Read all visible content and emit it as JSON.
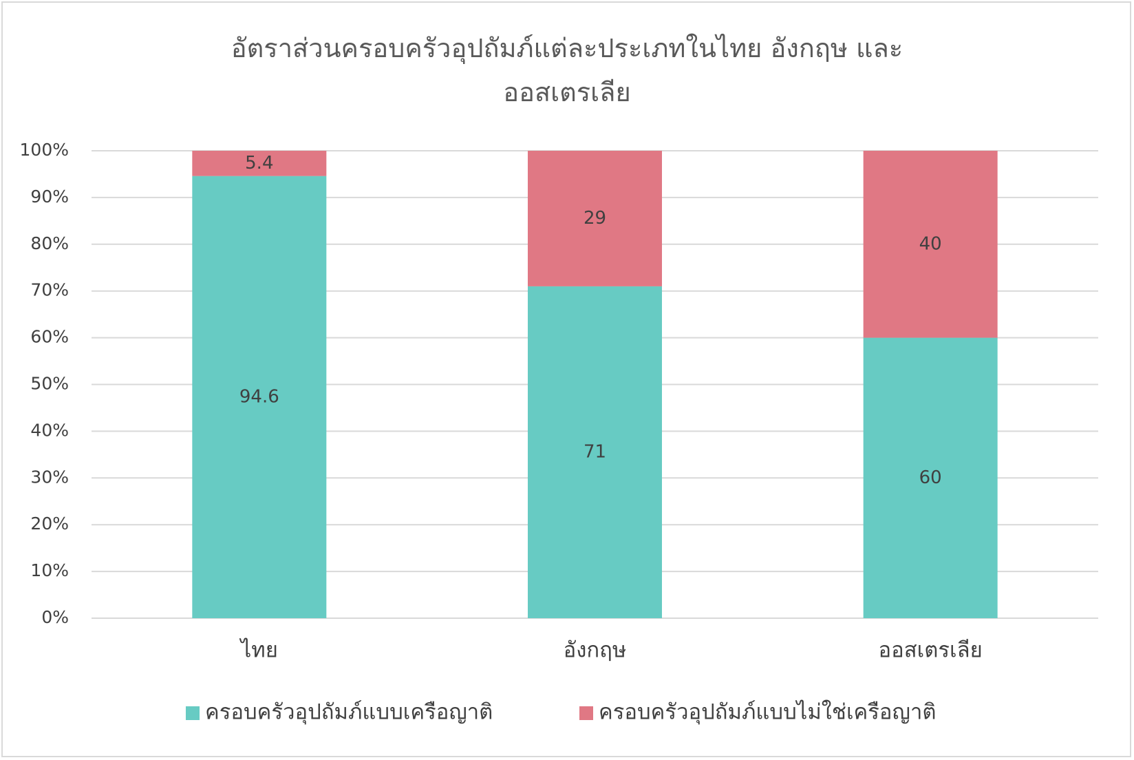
{
  "chart_data": {
    "type": "stacked_bar_100",
    "title": "อัตราส่วนครอบครัวอุปถัมภ์แต่ละประเภทในไทย อังกฤษ และออสเตรเลีย",
    "categories": [
      "ไทย",
      "อังกฤษ",
      "ออสเตรเลีย"
    ],
    "series": [
      {
        "name": "ครอบครัวอุปถัมภ์แบบเครือญาติ",
        "color": "#67cbc3",
        "values": [
          94.6,
          71,
          60
        ]
      },
      {
        "name": "ครอบครัวอุปถัมภ์แบบไม่ใช่เครือญาติ",
        "color": "#e07884",
        "values": [
          5.4,
          29,
          40
        ]
      }
    ],
    "ylim": [
      0,
      100
    ],
    "yticks": [
      {
        "value": 0,
        "label": "0%"
      },
      {
        "value": 10,
        "label": "10%"
      },
      {
        "value": 20,
        "label": "20%"
      },
      {
        "value": 30,
        "label": "30%"
      },
      {
        "value": 40,
        "label": "40%"
      },
      {
        "value": 50,
        "label": "50%"
      },
      {
        "value": 60,
        "label": "60%"
      },
      {
        "value": 70,
        "label": "70%"
      },
      {
        "value": 80,
        "label": "80%"
      },
      {
        "value": 90,
        "label": "90%"
      },
      {
        "value": 100,
        "label": "100%"
      }
    ],
    "grid": true,
    "legend": "bottom"
  }
}
